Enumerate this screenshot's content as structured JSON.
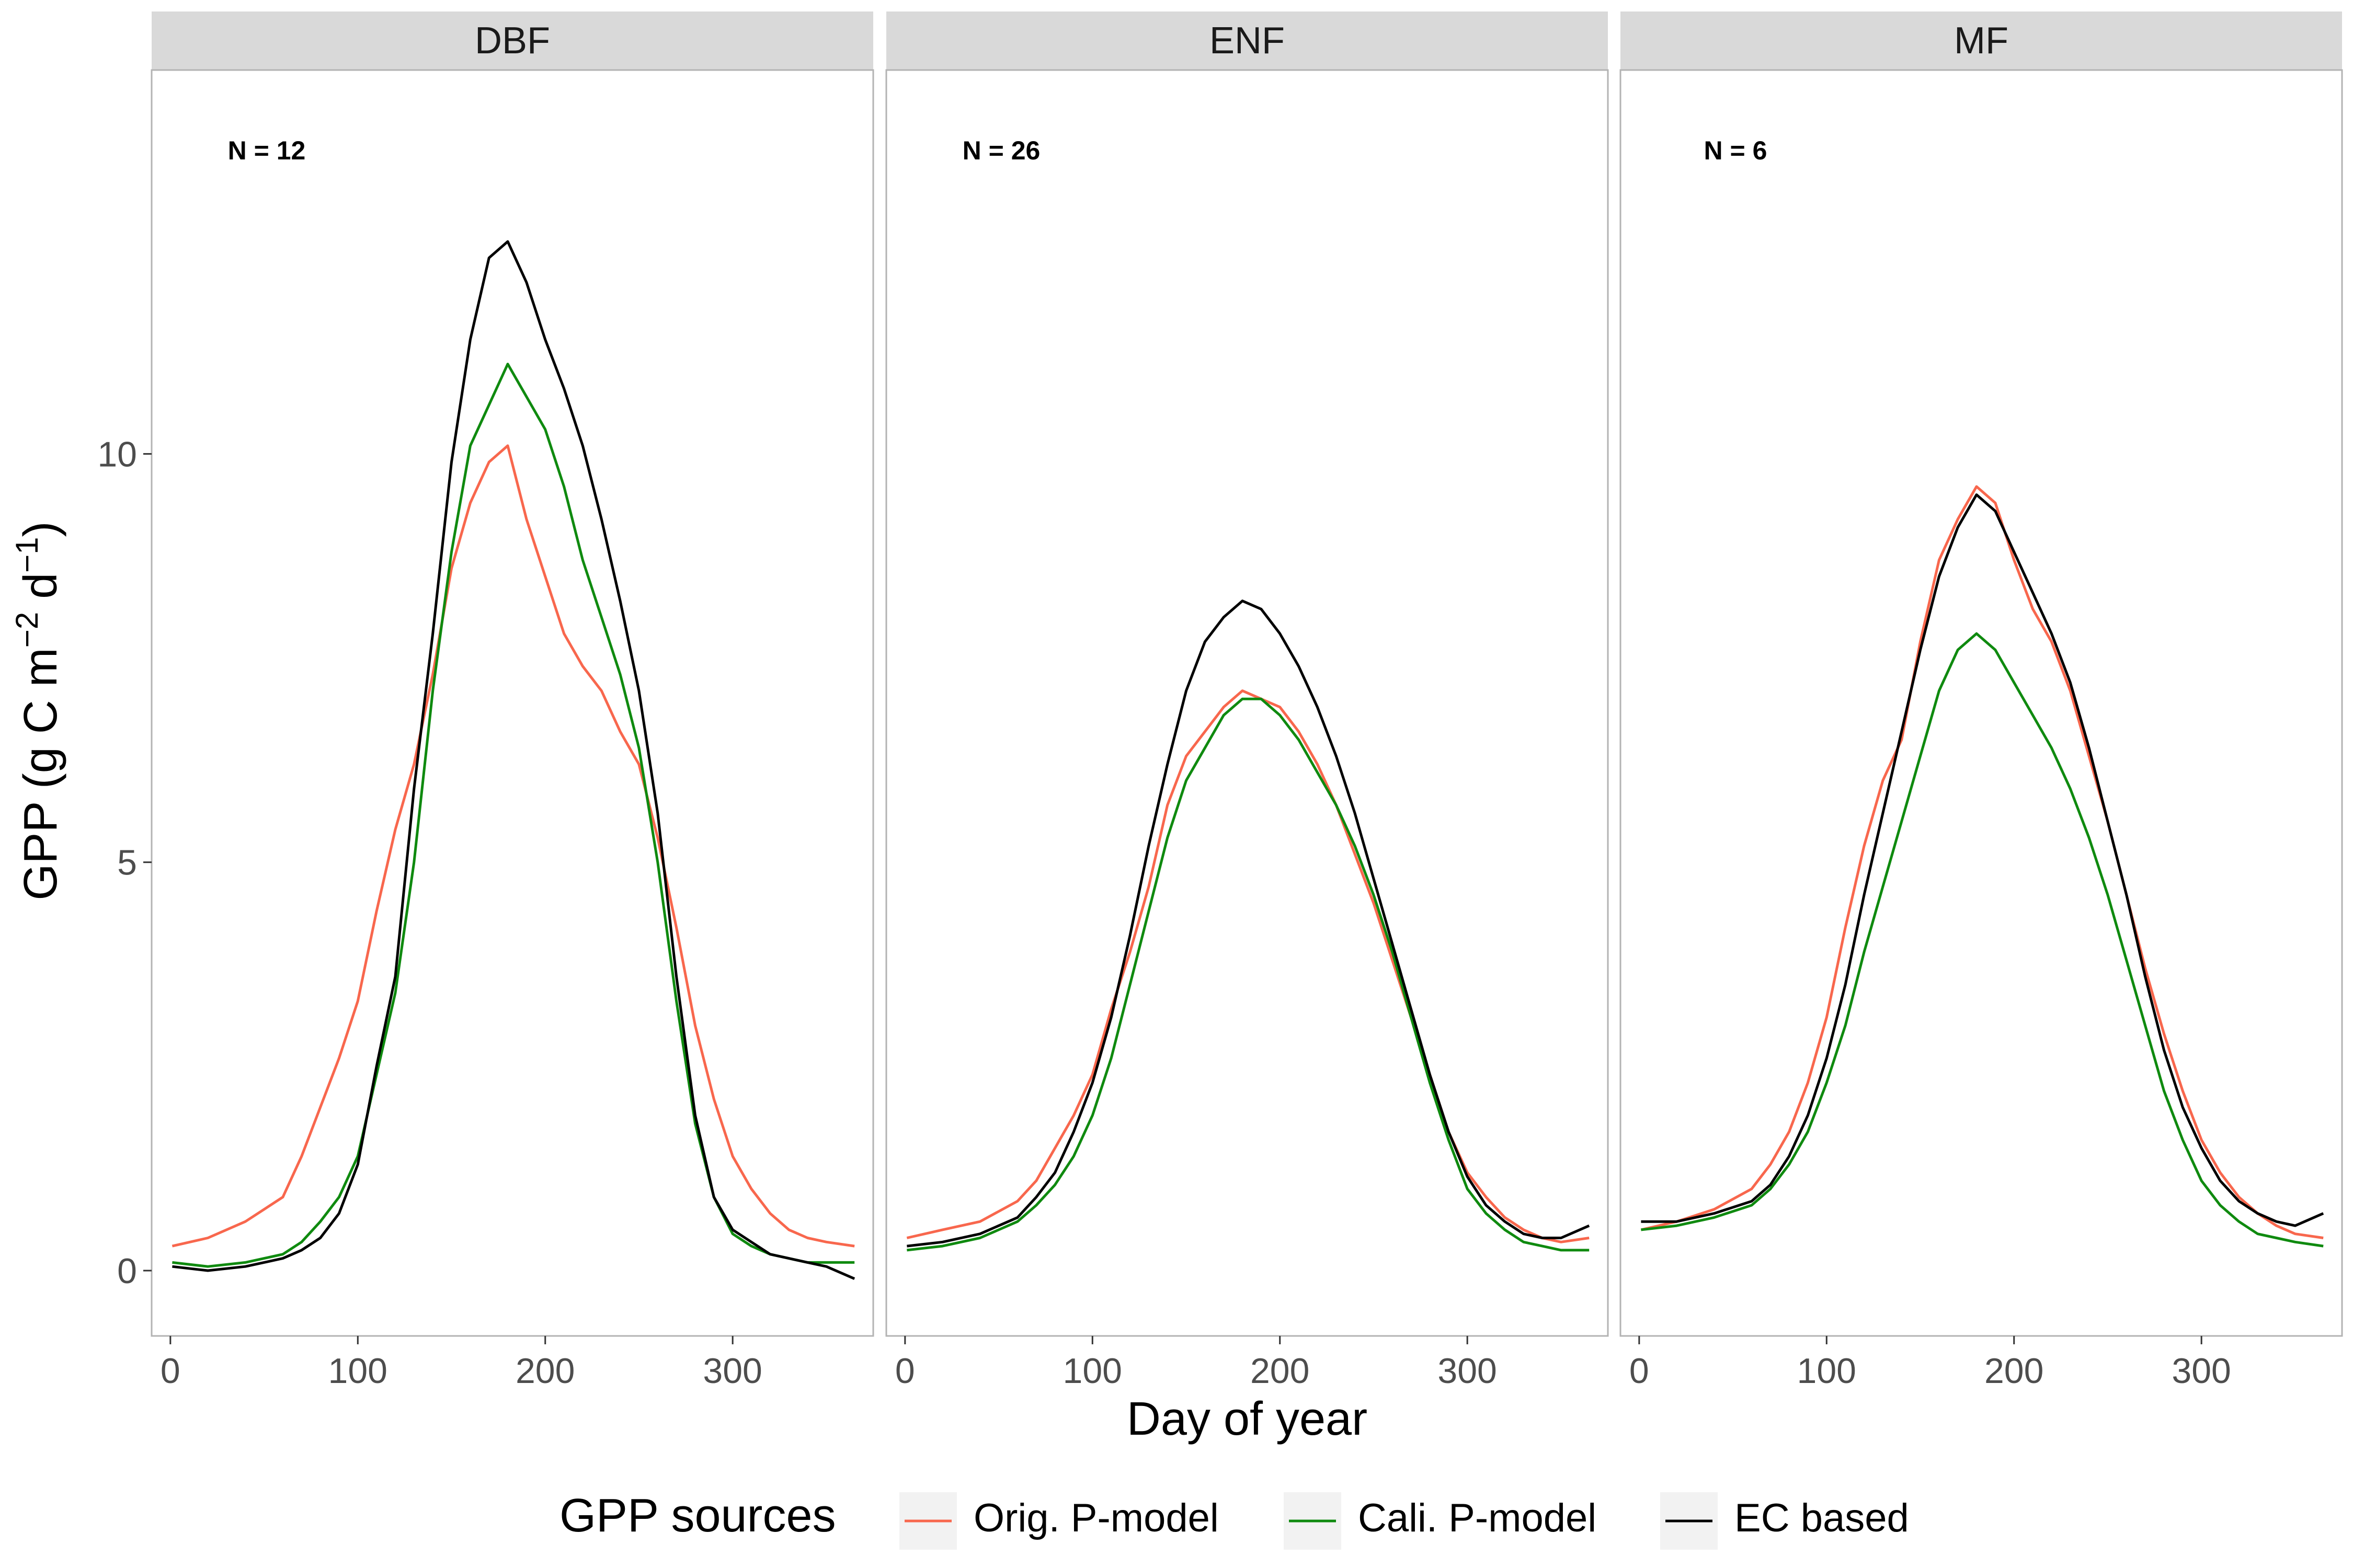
{
  "chart_data": {
    "type": "line",
    "xlabel": "Day of year",
    "ylabel": "GPP (g C m",
    "ylabel_exp1": "−2",
    "ylabel_mid": " d",
    "ylabel_exp2": "−1",
    "ylabel_end": ")",
    "xlim": [
      -10,
      375
    ],
    "ylim": [
      -0.8,
      14.7
    ],
    "xticks": [
      0,
      100,
      200,
      300
    ],
    "yticks": [
      0,
      5,
      10
    ],
    "grid": false,
    "legend": {
      "title": "GPP sources",
      "placement": "bottom",
      "entries": [
        {
          "label": "Orig. P-model",
          "color": "#f8674d"
        },
        {
          "label": "Cali. P-model",
          "color": "#0f8a0f"
        },
        {
          "label": "EC based",
          "color": "#000000"
        }
      ]
    },
    "panels": [
      {
        "label": "DBF",
        "annotation": "N = 12",
        "series": [
          {
            "key": "orig",
            "color": "#f8674d",
            "x": [
              1,
              20,
              40,
              60,
              70,
              80,
              90,
              100,
              110,
              120,
              130,
              140,
              150,
              160,
              170,
              180,
              190,
              200,
              210,
              220,
              230,
              240,
              250,
              260,
              270,
              280,
              290,
              300,
              310,
              320,
              330,
              340,
              350,
              365
            ],
            "y": [
              0.3,
              0.4,
              0.6,
              0.9,
              1.4,
              2.0,
              2.6,
              3.3,
              4.4,
              5.4,
              6.2,
              7.3,
              8.6,
              9.4,
              9.9,
              10.1,
              9.2,
              8.5,
              7.8,
              7.4,
              7.1,
              6.6,
              6.2,
              5.3,
              4.2,
              3.0,
              2.1,
              1.4,
              1.0,
              0.7,
              0.5,
              0.4,
              0.35,
              0.3
            ]
          },
          {
            "key": "cali",
            "color": "#0f8a0f",
            "x": [
              1,
              20,
              40,
              60,
              70,
              80,
              90,
              100,
              110,
              120,
              130,
              140,
              150,
              160,
              170,
              180,
              190,
              200,
              210,
              220,
              230,
              240,
              250,
              260,
              270,
              280,
              290,
              300,
              310,
              320,
              330,
              340,
              350,
              365
            ],
            "y": [
              0.1,
              0.05,
              0.1,
              0.2,
              0.35,
              0.6,
              0.9,
              1.4,
              2.4,
              3.4,
              5.0,
              7.1,
              8.8,
              10.1,
              10.6,
              11.1,
              10.7,
              10.3,
              9.6,
              8.7,
              8.0,
              7.3,
              6.4,
              5.0,
              3.3,
              1.8,
              0.9,
              0.45,
              0.3,
              0.2,
              0.15,
              0.1,
              0.1,
              0.1
            ]
          },
          {
            "key": "ec",
            "color": "#000000",
            "x": [
              1,
              20,
              40,
              60,
              70,
              80,
              90,
              100,
              110,
              120,
              130,
              140,
              150,
              160,
              170,
              180,
              190,
              200,
              210,
              220,
              230,
              240,
              250,
              260,
              270,
              280,
              290,
              300,
              310,
              320,
              330,
              340,
              350,
              365
            ],
            "y": [
              0.05,
              0.0,
              0.05,
              0.15,
              0.25,
              0.4,
              0.7,
              1.3,
              2.5,
              3.6,
              5.9,
              7.8,
              9.9,
              11.4,
              12.4,
              12.6,
              12.1,
              11.4,
              10.8,
              10.1,
              9.2,
              8.2,
              7.1,
              5.6,
              3.6,
              1.9,
              0.9,
              0.5,
              0.35,
              0.2,
              0.15,
              0.1,
              0.05,
              -0.1
            ]
          }
        ]
      },
      {
        "label": "ENF",
        "annotation": "N = 26",
        "series": [
          {
            "key": "orig",
            "color": "#f8674d",
            "x": [
              1,
              20,
              40,
              60,
              70,
              80,
              90,
              100,
              110,
              120,
              130,
              140,
              150,
              160,
              170,
              180,
              190,
              200,
              210,
              220,
              230,
              240,
              250,
              260,
              270,
              280,
              290,
              300,
              310,
              320,
              330,
              340,
              350,
              365
            ],
            "y": [
              0.4,
              0.5,
              0.6,
              0.85,
              1.1,
              1.5,
              1.9,
              2.4,
              3.2,
              3.9,
              4.7,
              5.7,
              6.3,
              6.6,
              6.9,
              7.1,
              7.0,
              6.9,
              6.6,
              6.2,
              5.7,
              5.1,
              4.5,
              3.8,
              3.1,
              2.4,
              1.7,
              1.2,
              0.9,
              0.65,
              0.5,
              0.4,
              0.35,
              0.4
            ]
          },
          {
            "key": "cali",
            "color": "#0f8a0f",
            "x": [
              1,
              20,
              40,
              60,
              70,
              80,
              90,
              100,
              110,
              120,
              130,
              140,
              150,
              160,
              170,
              180,
              190,
              200,
              210,
              220,
              230,
              240,
              250,
              260,
              270,
              280,
              290,
              300,
              310,
              320,
              330,
              340,
              350,
              365
            ],
            "y": [
              0.25,
              0.3,
              0.4,
              0.6,
              0.8,
              1.05,
              1.4,
              1.9,
              2.6,
              3.5,
              4.4,
              5.3,
              6.0,
              6.4,
              6.8,
              7.0,
              7.0,
              6.8,
              6.5,
              6.1,
              5.7,
              5.2,
              4.6,
              3.9,
              3.1,
              2.3,
              1.6,
              1.0,
              0.7,
              0.5,
              0.35,
              0.3,
              0.25,
              0.25
            ]
          },
          {
            "key": "ec",
            "color": "#000000",
            "x": [
              1,
              20,
              40,
              60,
              70,
              80,
              90,
              100,
              110,
              120,
              130,
              140,
              150,
              160,
              170,
              180,
              190,
              200,
              210,
              220,
              230,
              240,
              250,
              260,
              270,
              280,
              290,
              300,
              310,
              320,
              330,
              340,
              350,
              365
            ],
            "y": [
              0.3,
              0.35,
              0.45,
              0.65,
              0.9,
              1.2,
              1.7,
              2.3,
              3.1,
              4.1,
              5.2,
              6.2,
              7.1,
              7.7,
              8.0,
              8.2,
              8.1,
              7.8,
              7.4,
              6.9,
              6.3,
              5.6,
              4.8,
              4.0,
              3.2,
              2.4,
              1.7,
              1.15,
              0.8,
              0.6,
              0.45,
              0.4,
              0.4,
              0.55
            ]
          }
        ]
      },
      {
        "label": "MF",
        "annotation": "N = 6",
        "series": [
          {
            "key": "orig",
            "color": "#f8674d",
            "x": [
              1,
              20,
              40,
              60,
              70,
              80,
              90,
              100,
              110,
              120,
              130,
              140,
              150,
              160,
              170,
              180,
              190,
              200,
              210,
              220,
              230,
              240,
              250,
              260,
              270,
              280,
              290,
              300,
              310,
              320,
              330,
              340,
              350,
              365
            ],
            "y": [
              0.5,
              0.6,
              0.75,
              1.0,
              1.3,
              1.7,
              2.3,
              3.1,
              4.2,
              5.2,
              6.0,
              6.5,
              7.7,
              8.7,
              9.2,
              9.6,
              9.4,
              8.7,
              8.1,
              7.7,
              7.1,
              6.3,
              5.5,
              4.6,
              3.7,
              2.9,
              2.2,
              1.6,
              1.2,
              0.9,
              0.7,
              0.55,
              0.45,
              0.4
            ]
          },
          {
            "key": "cali",
            "color": "#0f8a0f",
            "x": [
              1,
              20,
              40,
              60,
              70,
              80,
              90,
              100,
              110,
              120,
              130,
              140,
              150,
              160,
              170,
              180,
              190,
              200,
              210,
              220,
              230,
              240,
              250,
              260,
              270,
              280,
              290,
              300,
              310,
              320,
              330,
              340,
              350,
              365
            ],
            "y": [
              0.5,
              0.55,
              0.65,
              0.8,
              1.0,
              1.3,
              1.7,
              2.3,
              3.0,
              3.9,
              4.7,
              5.5,
              6.3,
              7.1,
              7.6,
              7.8,
              7.6,
              7.2,
              6.8,
              6.4,
              5.9,
              5.3,
              4.6,
              3.8,
              3.0,
              2.2,
              1.6,
              1.1,
              0.8,
              0.6,
              0.45,
              0.4,
              0.35,
              0.3
            ]
          },
          {
            "key": "ec",
            "color": "#000000",
            "x": [
              1,
              20,
              40,
              60,
              70,
              80,
              90,
              100,
              110,
              120,
              130,
              140,
              150,
              160,
              170,
              180,
              190,
              200,
              210,
              220,
              230,
              240,
              250,
              260,
              270,
              280,
              290,
              300,
              310,
              320,
              330,
              340,
              350,
              365
            ],
            "y": [
              0.6,
              0.6,
              0.7,
              0.85,
              1.05,
              1.4,
              1.9,
              2.6,
              3.5,
              4.6,
              5.6,
              6.6,
              7.6,
              8.5,
              9.1,
              9.5,
              9.3,
              8.8,
              8.3,
              7.8,
              7.2,
              6.4,
              5.5,
              4.6,
              3.6,
              2.7,
              2.0,
              1.5,
              1.1,
              0.85,
              0.7,
              0.6,
              0.55,
              0.7
            ]
          }
        ]
      }
    ]
  }
}
